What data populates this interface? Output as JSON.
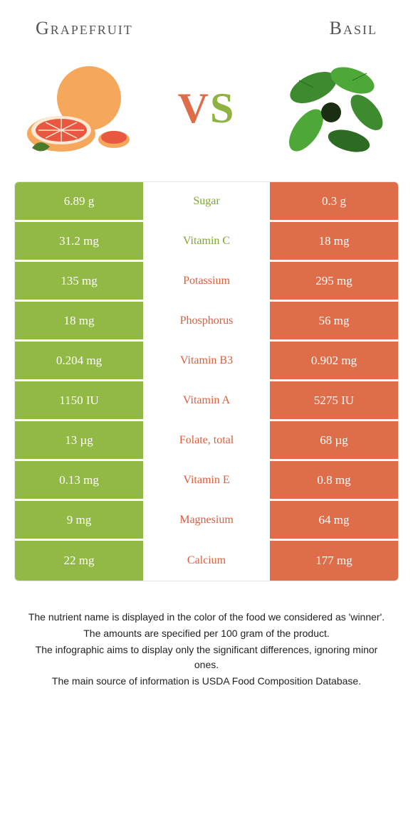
{
  "left_food": "Grapefruit",
  "right_food": "Basil",
  "vs_label": "VS",
  "colors": {
    "left": "#92b846",
    "right": "#de6d4a",
    "left_text": "#7da534",
    "right_text": "#d85f3c",
    "white": "#ffffff"
  },
  "rows": [
    {
      "left": "6.89 g",
      "mid": "Sugar",
      "right": "0.3 g",
      "winner": "left"
    },
    {
      "left": "31.2 mg",
      "mid": "Vitamin C",
      "right": "18 mg",
      "winner": "left"
    },
    {
      "left": "135 mg",
      "mid": "Potassium",
      "right": "295 mg",
      "winner": "right"
    },
    {
      "left": "18 mg",
      "mid": "Phosphorus",
      "right": "56 mg",
      "winner": "right"
    },
    {
      "left": "0.204 mg",
      "mid": "Vitamin B3",
      "right": "0.902 mg",
      "winner": "right"
    },
    {
      "left": "1150 IU",
      "mid": "Vitamin A",
      "right": "5275 IU",
      "winner": "right"
    },
    {
      "left": "13 µg",
      "mid": "Folate, total",
      "right": "68 µg",
      "winner": "right"
    },
    {
      "left": "0.13 mg",
      "mid": "Vitamin E",
      "right": "0.8 mg",
      "winner": "right"
    },
    {
      "left": "9 mg",
      "mid": "Magnesium",
      "right": "64 mg",
      "winner": "right"
    },
    {
      "left": "22 mg",
      "mid": "Calcium",
      "right": "177 mg",
      "winner": "right"
    }
  ],
  "footer": [
    "The nutrient name is displayed in the color of the food we considered as 'winner'.",
    "The amounts are specified per 100 gram of the product.",
    "The infographic aims to display only the significant differences, ignoring minor ones.",
    "The main source of information is USDA Food Composition Database."
  ]
}
